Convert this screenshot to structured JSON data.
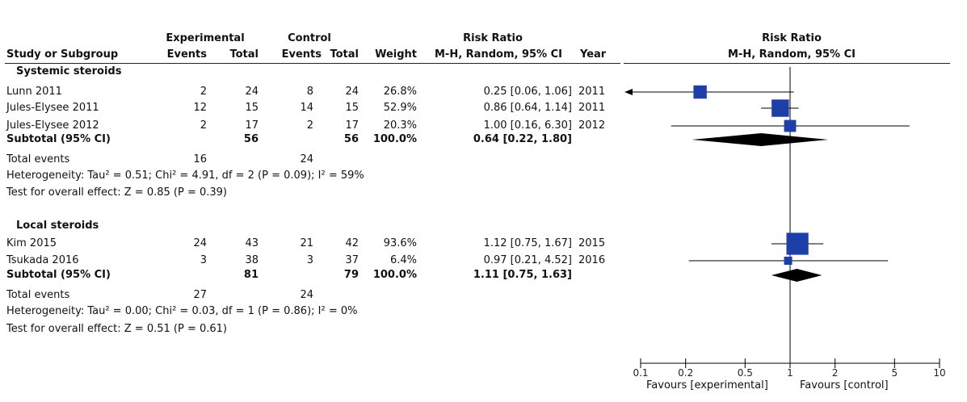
{
  "chart_data": {
    "type": "forest",
    "headers": {
      "experimental": "Experimental",
      "control": "Control",
      "risk_ratio_left": "Risk Ratio",
      "risk_ratio_right": "Risk Ratio",
      "study": "Study or Subgroup",
      "events": "Events",
      "total": "Total",
      "events2": "Events",
      "total2": "Total",
      "weight": "Weight",
      "method": "M-H, Random, 95% CI",
      "year": "Year",
      "method_right": "M-H, Random, 95% CI"
    },
    "subgroups": [
      {
        "name": "Systemic steroids",
        "studies": [
          {
            "name": "Lunn 2011",
            "exp_events": "2",
            "exp_total": "24",
            "ctrl_events": "8",
            "ctrl_total": "24",
            "weight": "26.8%",
            "ci_text": "0.25 [0.06, 1.06]",
            "year": "2011",
            "rr": 0.25,
            "lo": 0.06,
            "hi": 1.06,
            "w": 26.8
          },
          {
            "name": "Jules-Elysee 2011",
            "exp_events": "12",
            "exp_total": "15",
            "ctrl_events": "14",
            "ctrl_total": "15",
            "weight": "52.9%",
            "ci_text": "0.86 [0.64, 1.14]",
            "year": "2011",
            "rr": 0.86,
            "lo": 0.64,
            "hi": 1.14,
            "w": 52.9
          },
          {
            "name": "Jules-Elysee 2012",
            "exp_events": "2",
            "exp_total": "17",
            "ctrl_events": "2",
            "ctrl_total": "17",
            "weight": "20.3%",
            "ci_text": "1.00 [0.16, 6.30]",
            "year": "2012",
            "rr": 1.0,
            "lo": 0.16,
            "hi": 6.3,
            "w": 20.3
          }
        ],
        "subtotal": {
          "label": "Subtotal (95% CI)",
          "exp_total": "56",
          "ctrl_total": "56",
          "weight": "100.0%",
          "ci_text": "0.64 [0.22, 1.80]",
          "rr": 0.64,
          "lo": 0.22,
          "hi": 1.8
        },
        "total_events": {
          "label": "Total events",
          "exp": "16",
          "ctrl": "24"
        },
        "heterogeneity": "Heterogeneity: Tau² = 0.51; Chi² = 4.91, df = 2 (P = 0.09); I² = 59%",
        "overall_effect": "Test for overall effect: Z = 0.85 (P = 0.39)"
      },
      {
        "name": "Local steroids",
        "studies": [
          {
            "name": "Kim 2015",
            "exp_events": "24",
            "exp_total": "43",
            "ctrl_events": "21",
            "ctrl_total": "42",
            "weight": "93.6%",
            "ci_text": "1.12 [0.75, 1.67]",
            "year": "2015",
            "rr": 1.12,
            "lo": 0.75,
            "hi": 1.67,
            "w": 93.6
          },
          {
            "name": "Tsukada 2016",
            "exp_events": "3",
            "exp_total": "38",
            "ctrl_events": "3",
            "ctrl_total": "37",
            "weight": "6.4%",
            "ci_text": "0.97 [0.21, 4.52]",
            "year": "2016",
            "rr": 0.97,
            "lo": 0.21,
            "hi": 4.52,
            "w": 6.4
          }
        ],
        "subtotal": {
          "label": "Subtotal (95% CI)",
          "exp_total": "81",
          "ctrl_total": "79",
          "weight": "100.0%",
          "ci_text": "1.11 [0.75, 1.63]",
          "rr": 1.11,
          "lo": 0.75,
          "hi": 1.63
        },
        "total_events": {
          "label": "Total events",
          "exp": "27",
          "ctrl": "24"
        },
        "heterogeneity": "Heterogeneity: Tau² = 0.00; Chi² = 0.03, df = 1 (P = 0.86); I² = 0%",
        "overall_effect": "Test for overall effect: Z = 0.51 (P = 0.61)"
      }
    ],
    "x_axis": {
      "scale": "log",
      "range": [
        0.1,
        10
      ],
      "ticks": [
        0.1,
        0.2,
        0.5,
        1,
        2,
        5,
        10
      ],
      "tick_labels": [
        "0.1",
        "0.2",
        "0.5",
        "1",
        "2",
        "5",
        "10"
      ],
      "favours_left": "Favours [experimental]",
      "favours_right": "Favours [control]"
    },
    "colors": {
      "marker": "#1f3fa8",
      "diamond": "#000000",
      "line": "#000000"
    }
  }
}
